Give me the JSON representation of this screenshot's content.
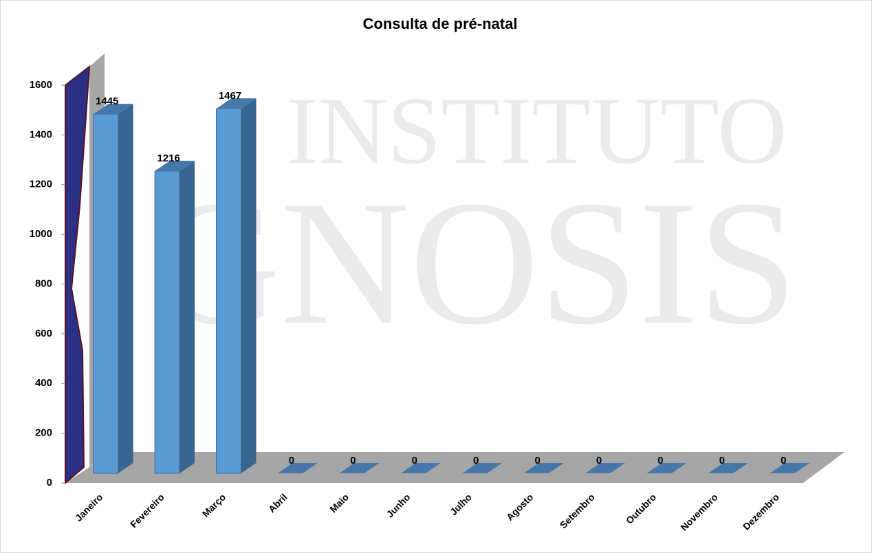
{
  "chart_data": {
    "type": "bar3d",
    "title": "Consulta de pré-natal",
    "watermark": [
      "INSTITUTO",
      "GNOSIS"
    ],
    "categories": [
      "Janeiro",
      "Fevereiro",
      "Março",
      "Abril",
      "Maio",
      "Junho",
      "Julho",
      "Agosto",
      "Setembro",
      "Outubro",
      "Novembro",
      "Dezembro"
    ],
    "values": [
      1445,
      1216,
      1467,
      0,
      0,
      0,
      0,
      0,
      0,
      0,
      0,
      0
    ],
    "color": "#5b9bd5",
    "ylim": [
      0,
      1600
    ],
    "yticks": [
      0,
      200,
      400,
      600,
      800,
      1000,
      1200,
      1400,
      1600
    ]
  }
}
